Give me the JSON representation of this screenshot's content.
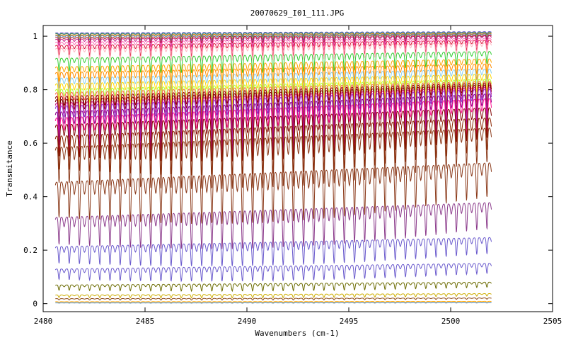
{
  "chart_data": {
    "type": "line",
    "title": "20070629_I01_111.JPG",
    "xlabel": "Wavenumbers (cm-1)",
    "ylabel": "Transmitance",
    "xlim": [
      2480,
      2505
    ],
    "ylim": [
      -0.03,
      1.04
    ],
    "x_range": [
      2480.6,
      2502.0
    ],
    "xticks": [
      {
        "value": 2480,
        "label": "2480"
      },
      {
        "value": 2485,
        "label": "2485"
      },
      {
        "value": 2490,
        "label": "2490"
      },
      {
        "value": 2495,
        "label": "2495"
      },
      {
        "value": 2500,
        "label": "2500"
      },
      {
        "value": 2505,
        "label": "2505"
      }
    ],
    "yticks": [
      {
        "value": 0,
        "label": "0"
      },
      {
        "value": 0.2,
        "label": "0.2"
      },
      {
        "value": 0.4,
        "label": "0.4"
      },
      {
        "value": 0.6,
        "label": "0.6"
      },
      {
        "value": 0.8,
        "label": "0.8"
      },
      {
        "value": 1,
        "label": "1"
      }
    ],
    "grid": false,
    "legend": "none",
    "line_period_cm1": 0.5,
    "series": [
      {
        "color": "#6a5acd",
        "baseline": 1.015,
        "depth": 0.01
      },
      {
        "color": "#2e8b57",
        "baseline": 1.012,
        "depth": 0.012
      },
      {
        "color": "#ff7f00",
        "baseline": 1.008,
        "depth": 0.015
      },
      {
        "color": "#4682b4",
        "baseline": 1.005,
        "depth": 0.018
      },
      {
        "color": "#b22222",
        "baseline": 1.0,
        "depth": 0.022
      },
      {
        "color": "#c71585",
        "baseline": 0.995,
        "depth": 0.03
      },
      {
        "color": "#ff69b4",
        "baseline": 0.985,
        "depth": 0.035
      },
      {
        "color": "#dc143c",
        "baseline": 0.975,
        "depth": 0.045
      },
      {
        "color": "#ffb6c1",
        "baseline": 0.965,
        "depth": 0.05
      },
      {
        "color": "#32cd32",
        "baseline": 0.93,
        "depth": 0.06
      },
      {
        "color": "#ffa500",
        "baseline": 0.9,
        "depth": 0.07
      },
      {
        "color": "#ff8c00",
        "baseline": 0.88,
        "depth": 0.075
      },
      {
        "color": "#87ceeb",
        "baseline": 0.86,
        "depth": 0.08
      },
      {
        "color": "#ffd700",
        "baseline": 0.84,
        "depth": 0.085
      },
      {
        "color": "#adff2f",
        "baseline": 0.82,
        "depth": 0.09
      },
      {
        "color": "#ff6347",
        "baseline": 0.81,
        "depth": 0.1
      },
      {
        "color": "#8b0000",
        "baseline": 0.8,
        "depth": 0.12
      },
      {
        "color": "#800000",
        "baseline": 0.79,
        "depth": 0.13
      },
      {
        "color": "#c71585",
        "baseline": 0.78,
        "depth": 0.14
      },
      {
        "color": "#9932cc",
        "baseline": 0.77,
        "depth": 0.15
      },
      {
        "color": "#8b008b",
        "baseline": 0.75,
        "depth": 0.16
      },
      {
        "color": "#ff1493",
        "baseline": 0.73,
        "depth": 0.17
      },
      {
        "color": "#800000",
        "baseline": 0.7,
        "depth": 0.15
      },
      {
        "color": "#8b2500",
        "baseline": 0.66,
        "depth": 0.16
      },
      {
        "color": "#8b3a1a",
        "baseline": 0.62,
        "depth": 0.17
      },
      {
        "color": "#8b3a1a",
        "baseline": 0.49,
        "depth": 0.17
      },
      {
        "color": "#8b3a8b",
        "baseline": 0.35,
        "depth": 0.13
      },
      {
        "color": "#6a5acd",
        "baseline": 0.23,
        "depth": 0.08
      },
      {
        "color": "#6a5acd",
        "baseline": 0.14,
        "depth": 0.05
      },
      {
        "color": "#6b6b00",
        "baseline": 0.075,
        "depth": 0.025
      },
      {
        "color": "#cdad00",
        "baseline": 0.035,
        "depth": 0.012
      },
      {
        "color": "#8b4513",
        "baseline": 0.02,
        "depth": 0.006
      },
      {
        "color": "#ffa500",
        "baseline": 0.008,
        "depth": 0.003
      },
      {
        "color": "#4682b4",
        "baseline": 0.003,
        "depth": 0.001
      }
    ]
  }
}
